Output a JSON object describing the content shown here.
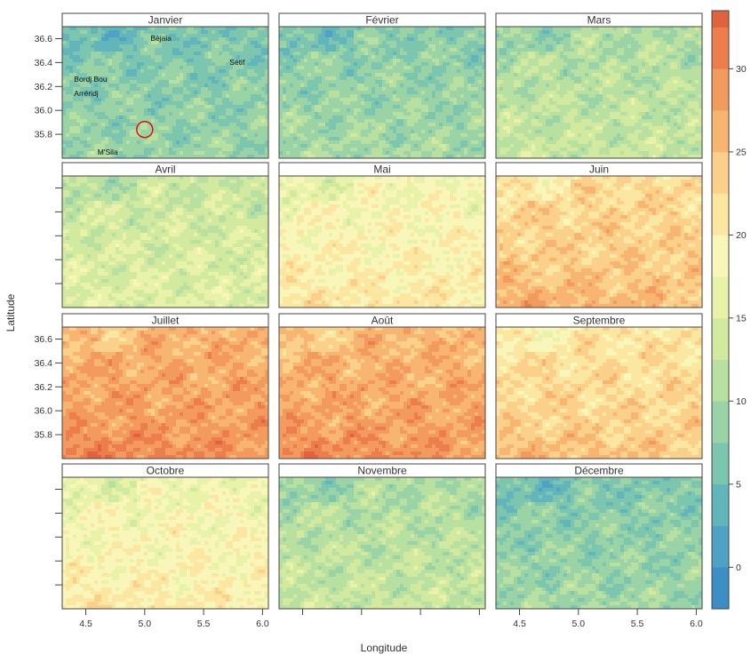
{
  "figure": {
    "xlabel": "Longitude",
    "ylabel": "Latitude"
  },
  "panels": [
    {
      "title": "Janvier",
      "level": 7.5
    },
    {
      "title": "Février",
      "level": 8.5
    },
    {
      "title": "Mars",
      "level": 11.5
    },
    {
      "title": "Avril",
      "level": 14
    },
    {
      "title": "Mai",
      "level": 19
    },
    {
      "title": "Juin",
      "level": 23.5
    },
    {
      "title": "Juillet",
      "level": 27.5
    },
    {
      "title": "Août",
      "level": 27
    },
    {
      "title": "Septembre",
      "level": 22.5
    },
    {
      "title": "Octobre",
      "level": 18.5
    },
    {
      "title": "Novembre",
      "level": 11.5
    },
    {
      "title": "Décembre",
      "level": 8
    }
  ],
  "x_ticks": [
    "4.5",
    "5.0",
    "5.5",
    "6.0"
  ],
  "y_ticks": [
    "36.6",
    "36.4",
    "36.2",
    "36.0",
    "35.8"
  ],
  "colorbar": {
    "min": -2.5,
    "max": 33.5,
    "step": 2.5,
    "tick_values": [
      0,
      5,
      10,
      15,
      20,
      25,
      30
    ],
    "tick_labels": [
      "0",
      "5",
      "10",
      "15",
      "20",
      "25",
      "30"
    ],
    "colors": [
      "#3C8EC5",
      "#4FA2C4",
      "#62B5BA",
      "#7CC5AE",
      "#9AD3A5",
      "#B8E0A0",
      "#D2EAA0",
      "#E8F2A8",
      "#F8F6B8",
      "#FCE7A2",
      "#FBD08A",
      "#F8B572",
      "#F39A5E",
      "#EB7E4C",
      "#E0633E",
      "#D24A3A"
    ]
  },
  "cities": [
    {
      "name": "Béjaia",
      "lon": 5.05,
      "lat": 36.58
    },
    {
      "name": "Sétif",
      "lon": 5.72,
      "lat": 36.38
    },
    {
      "name": "Bordj  Bou",
      "lon": 4.4,
      "lat": 36.24
    },
    {
      "name": "Arréridj",
      "lon": 4.4,
      "lat": 36.12
    },
    {
      "name": "M'Sila",
      "lon": 4.6,
      "lat": 35.63
    }
  ],
  "marker": {
    "lon": 5.0,
    "lat": 35.84
  }
}
